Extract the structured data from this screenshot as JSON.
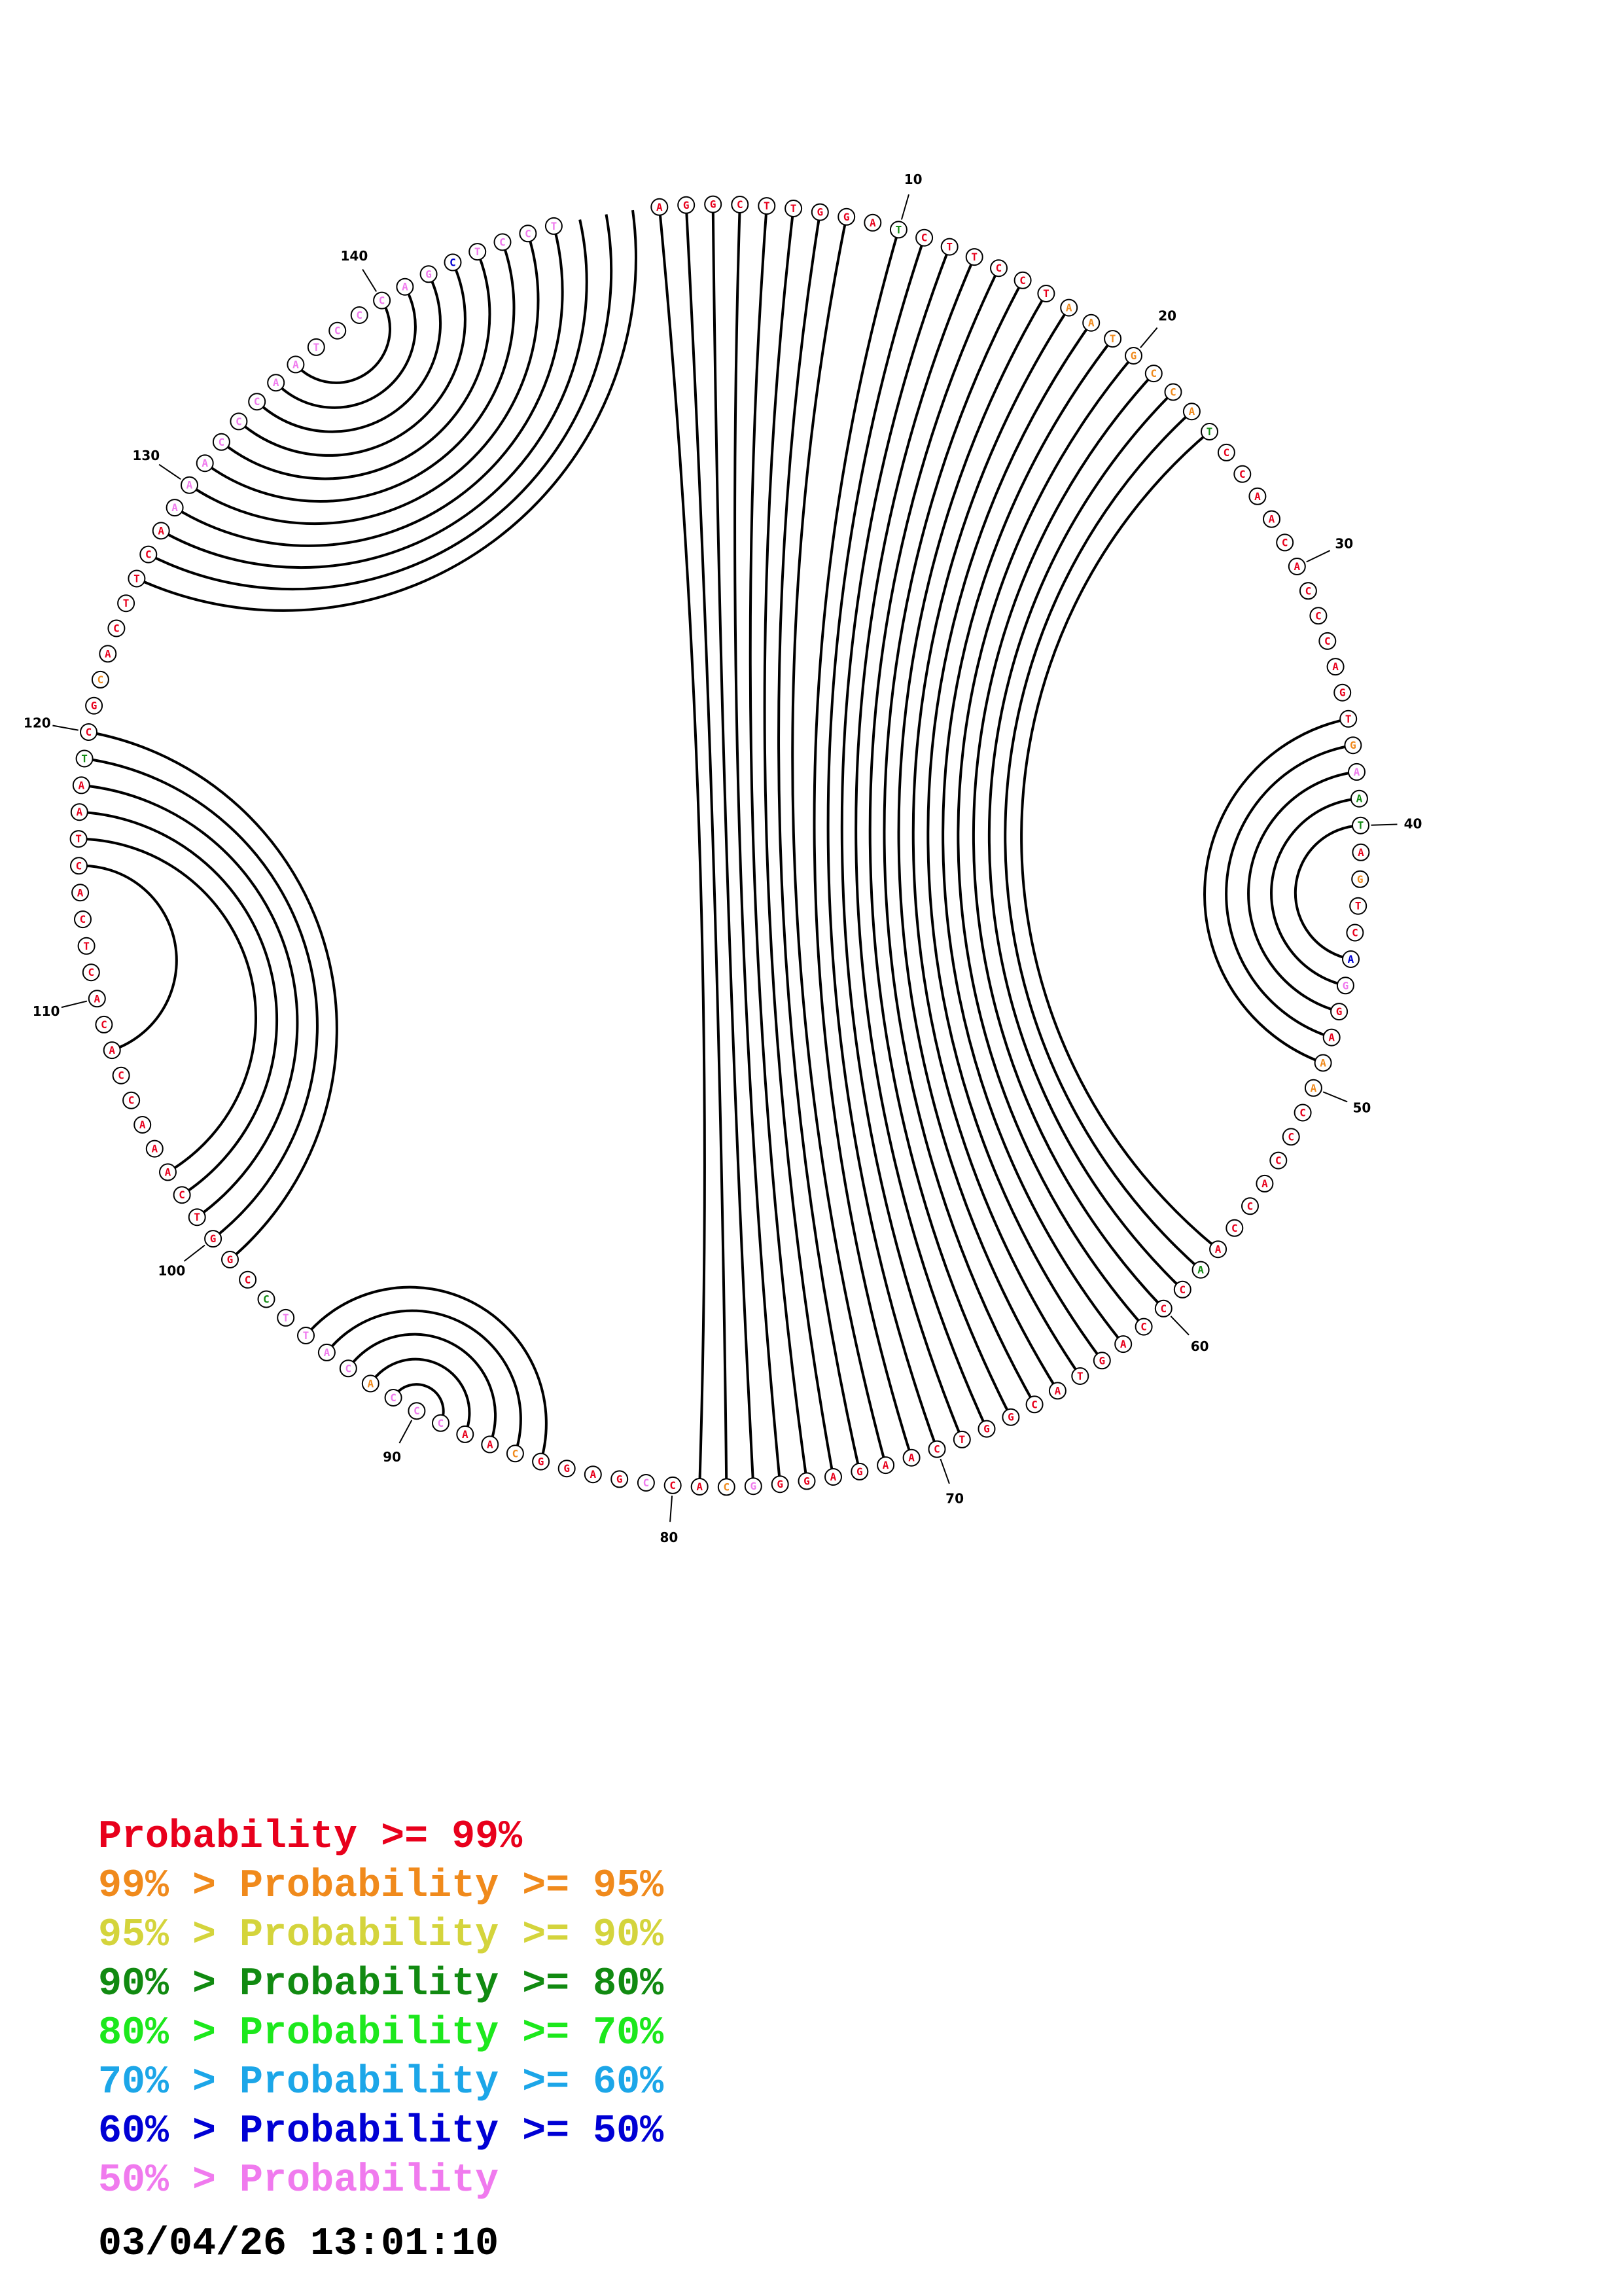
{
  "sequence": "AGGCTTGGATCTTCCTAATGCCATCCAACACCCAGTGAATAGTCAGGAAACCCACCAACCCAGTACGGTCAAGAGGGCACCGAGGCAACCCACATTCCGGTCAAACCACACTCACTAATCGCACTTCAAAACCCAATCCCAGCTCCT",
  "base_probability_class": "",
  "position_labels": [
    "10",
    "20",
    "30",
    "40",
    "50",
    "60",
    "70",
    "80",
    "90",
    "100",
    "110",
    "120",
    "130",
    "140"
  ],
  "pairs": [
    [
      1,
      79
    ],
    [
      2,
      78
    ],
    [
      3,
      77
    ],
    [
      4,
      76
    ],
    [
      5,
      75
    ],
    [
      6,
      74
    ],
    [
      7,
      73
    ],
    [
      8,
      72
    ],
    [
      10,
      71
    ],
    [
      11,
      70
    ],
    [
      12,
      69
    ],
    [
      13,
      68
    ],
    [
      14,
      67
    ],
    [
      15,
      66
    ],
    [
      16,
      65
    ],
    [
      17,
      64
    ],
    [
      18,
      63
    ],
    [
      19,
      62
    ],
    [
      20,
      61
    ],
    [
      21,
      60
    ],
    [
      22,
      59
    ],
    [
      23,
      58
    ],
    [
      24,
      57
    ],
    [
      36,
      49
    ],
    [
      37,
      48
    ],
    [
      38,
      47
    ],
    [
      39,
      46
    ],
    [
      40,
      45
    ],
    [
      85,
      95
    ],
    [
      86,
      94
    ],
    [
      87,
      93
    ],
    [
      88,
      92
    ],
    [
      89,
      91
    ],
    [
      99,
      120
    ],
    [
      100,
      119
    ],
    [
      101,
      118
    ],
    [
      102,
      117
    ],
    [
      103,
      116
    ],
    [
      108,
      115
    ],
    [
      126,
      150
    ],
    [
      127,
      149
    ],
    [
      128,
      148
    ],
    [
      129,
      147
    ],
    [
      130,
      146
    ],
    [
      131,
      145
    ],
    [
      132,
      144
    ],
    [
      133,
      143
    ],
    [
      134,
      142
    ],
    [
      135,
      141
    ],
    [
      136,
      140
    ]
  ],
  "colors": {
    "p99": "#e8001c",
    "p95": "#f08a1c",
    "p90": "#d4d43c",
    "p80": "#118a11",
    "p70": "#1ce81c",
    "p60": "#1ca6e8",
    "p50": "#0000d4",
    "below50": "#f07aee"
  },
  "legend": {
    "rows": [
      {
        "prefix": "",
        "text": "Probability >= 99%",
        "color_key": "p99"
      },
      {
        "prefix": "99% > ",
        "text": "Probability >= 95%",
        "color_key": "p95"
      },
      {
        "prefix": "95% > ",
        "text": "Probability >= 90%",
        "color_key": "p90"
      },
      {
        "prefix": "90% > ",
        "text": "Probability >= 80%",
        "color_key": "p80"
      },
      {
        "prefix": "80% > ",
        "text": "Probability >= 70%",
        "color_key": "p70"
      },
      {
        "prefix": "70% > ",
        "text": "Probability >= 60%",
        "color_key": "p60"
      },
      {
        "prefix": "60% > ",
        "text": "Probability >= 50%",
        "color_key": "p50"
      },
      {
        "prefix": "50% > ",
        "text": "Probability",
        "color_key": "below50"
      }
    ]
  },
  "timestamp": "03/04/26 13:01:10"
}
